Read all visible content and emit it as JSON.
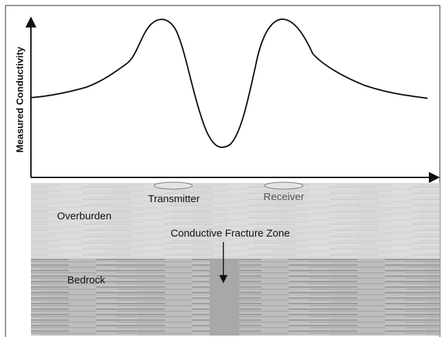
{
  "axis_label": "Measured Conductivity",
  "labels": {
    "transmitter": "Transmitter",
    "receiver": "Receiver",
    "overburden": "Overburden",
    "fracture_zone": "Conductive Fracture Zone",
    "bedrock": "Bedrock"
  }
}
